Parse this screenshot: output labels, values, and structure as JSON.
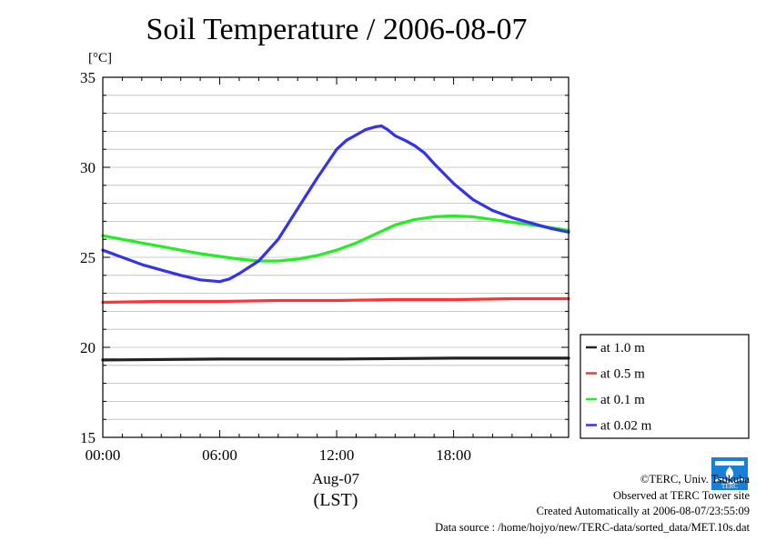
{
  "chart_data": {
    "type": "line",
    "title": "Soil Temperature / 2006-08-07",
    "ylabel": "[°C]",
    "ylim": [
      15,
      35
    ],
    "yticks": [
      "15",
      "20",
      "25",
      "30",
      "35"
    ],
    "xlim": [
      0,
      23.9
    ],
    "xticks": [
      {
        "value": 0,
        "label": "00:00"
      },
      {
        "value": 6,
        "label": "06:00"
      },
      {
        "value": 12,
        "label": "12:00"
      },
      {
        "value": 18,
        "label": "18:00"
      }
    ],
    "xlabel_date": "Aug-07",
    "xlabel_unit": "(LST)",
    "grid": true,
    "legend_position": "right",
    "series": [
      {
        "name": "at 1.0 m",
        "color": "#222222",
        "x": [
          0,
          6,
          12,
          18,
          23.9
        ],
        "y": [
          19.3,
          19.35,
          19.35,
          19.4,
          19.4
        ]
      },
      {
        "name": "at 0.5 m",
        "color": "#ff3333",
        "x": [
          0,
          3,
          6,
          9,
          12,
          15,
          18,
          21,
          23.9
        ],
        "y": [
          22.5,
          22.55,
          22.55,
          22.6,
          22.6,
          22.65,
          22.65,
          22.7,
          22.7
        ]
      },
      {
        "name": "at 0.1 m",
        "color": "#22ee22",
        "x": [
          0,
          1,
          2,
          3,
          4,
          5,
          6,
          7,
          8,
          9,
          10,
          11,
          12,
          13,
          14,
          15,
          16,
          17,
          18,
          19,
          20,
          21,
          22,
          23,
          23.9
        ],
        "y": [
          26.2,
          26.0,
          25.8,
          25.6,
          25.4,
          25.2,
          25.05,
          24.9,
          24.8,
          24.8,
          24.9,
          25.1,
          25.4,
          25.8,
          26.3,
          26.8,
          27.1,
          27.25,
          27.3,
          27.25,
          27.1,
          26.95,
          26.8,
          26.65,
          26.5
        ]
      },
      {
        "name": "at 0.02 m",
        "color": "#3333ee",
        "x": [
          0,
          1,
          2,
          3,
          4,
          5,
          6,
          6.5,
          7,
          8,
          9,
          10,
          11,
          11.5,
          12,
          12.5,
          13,
          13.5,
          14,
          14.3,
          14.6,
          15,
          15.5,
          16,
          16.5,
          17,
          18,
          19,
          20,
          21,
          22,
          23,
          23.9
        ],
        "y": [
          25.4,
          25.0,
          24.6,
          24.3,
          24.0,
          23.75,
          23.65,
          23.8,
          24.1,
          24.8,
          26.0,
          27.7,
          29.4,
          30.2,
          31.0,
          31.5,
          31.8,
          32.1,
          32.25,
          32.3,
          32.1,
          31.75,
          31.5,
          31.2,
          30.8,
          30.2,
          29.1,
          28.2,
          27.6,
          27.2,
          26.9,
          26.6,
          26.4
        ]
      }
    ]
  },
  "credits": {
    "copyright": "©TERC, Univ. Tsukuba",
    "observed": "Observed at TERC Tower site",
    "created": "Created Automatically at 2006-08-07/23:55:09",
    "source": "Data source : /home/hojyo/new/TERC-data/sorted_data/MET.10s.dat"
  },
  "logo": {
    "text": "TERC",
    "color": "#1a7fd6"
  }
}
